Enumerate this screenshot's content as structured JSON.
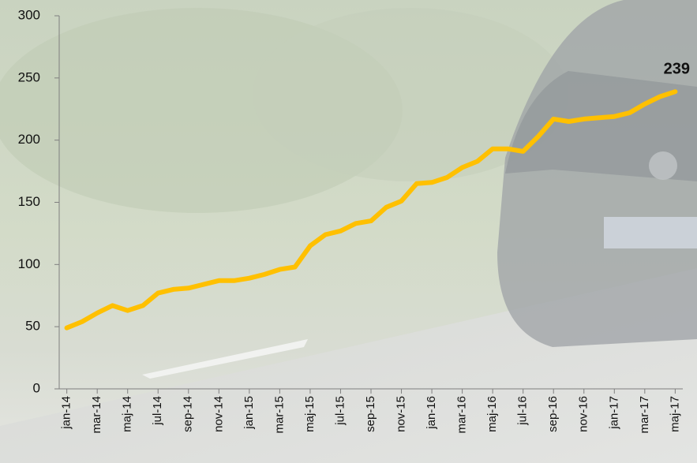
{
  "chart_data": {
    "type": "line",
    "categories": [
      "jan-14",
      null,
      "mar-14",
      null,
      "maj-14",
      null,
      "jul-14",
      null,
      "sep-14",
      null,
      "nov-14",
      null,
      "jan-15",
      null,
      "mar-15",
      null,
      "maj-15",
      null,
      "jul-15",
      null,
      "sep-15",
      null,
      "nov-15",
      null,
      "jan-16",
      null,
      "mar-16",
      null,
      "maj-16",
      null,
      "jul-16",
      null,
      "sep-16",
      null,
      "nov-16",
      null,
      "jan-17",
      null,
      "mar-17",
      null,
      "maj-17"
    ],
    "values": [
      49,
      54,
      61,
      67,
      63,
      67,
      77,
      80,
      81,
      84,
      87,
      87,
      89,
      92,
      96,
      98,
      115,
      124,
      127,
      133,
      135,
      146,
      151,
      165,
      166,
      170,
      178,
      183,
      193,
      193,
      191,
      203,
      217,
      215,
      217,
      218,
      219,
      222,
      229,
      235,
      239
    ],
    "color": "#ffc000",
    "ylim": [
      0,
      300
    ],
    "yticks": [
      0,
      50,
      100,
      150,
      200,
      250,
      300
    ],
    "grid": false,
    "data_labels": "last"
  }
}
